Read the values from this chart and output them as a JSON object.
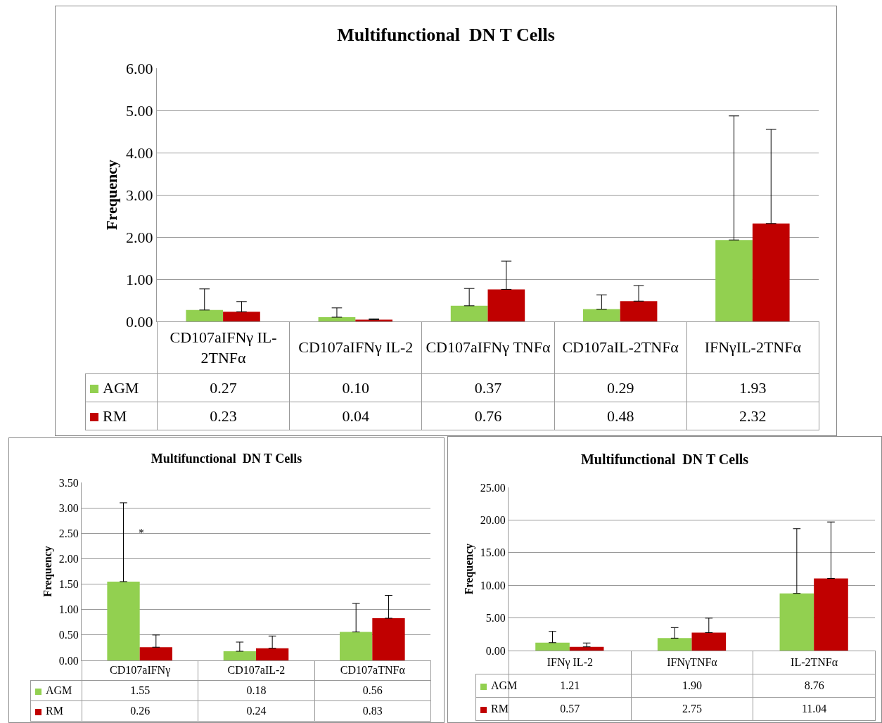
{
  "chart_data": [
    {
      "type": "bar",
      "title": "Multifunctional  DN T Cells",
      "ylabel": "Frequency",
      "categories": [
        "CD107aIFNγ IL-2TNFα",
        "CD107aIFNγ IL-2",
        "CD107aIFNγ TNFα",
        "CD107aIL-2TNFα",
        "IFNγIL-2TNFα"
      ],
      "series": [
        {
          "name": "AGM",
          "color": "#92d050",
          "values": [
            0.27,
            0.1,
            0.37,
            0.29,
            1.93
          ],
          "value_labels": [
            "0.27",
            "0.10",
            "0.37",
            "0.29",
            "1.93"
          ],
          "errors": [
            [
              0.27,
              0.77
            ],
            [
              0.1,
              0.32
            ],
            [
              0.37,
              0.78
            ],
            [
              0.29,
              0.63
            ],
            [
              1.93,
              4.87
            ]
          ]
        },
        {
          "name": "RM",
          "color": "#c00000",
          "values": [
            0.23,
            0.04,
            0.76,
            0.48,
            2.32
          ],
          "value_labels": [
            "0.23",
            "0.04",
            "0.76",
            "0.48",
            "2.32"
          ],
          "errors": [
            [
              0.23,
              0.47
            ],
            [
              0.04,
              0.06
            ],
            [
              0.76,
              1.43
            ],
            [
              0.48,
              0.85
            ],
            [
              2.32,
              4.55
            ]
          ]
        }
      ],
      "ylim": [
        0,
        6
      ],
      "yticks": [
        {
          "value": 0,
          "label": "0.00"
        },
        {
          "value": 1,
          "label": "1.00"
        },
        {
          "value": 2,
          "label": "2.00"
        },
        {
          "value": 3,
          "label": "3.00"
        },
        {
          "value": 4,
          "label": "4.00"
        },
        {
          "value": 5,
          "label": "5.00"
        },
        {
          "value": 6,
          "label": "6.00"
        }
      ],
      "grid": "y",
      "legend": "bottom left"
    },
    {
      "type": "bar",
      "title": "Multifunctional  DN T Cells",
      "ylabel": "Frequency",
      "categories": [
        "CD107aIFNγ",
        "CD107aIL-2",
        "CD107aTNFα"
      ],
      "series": [
        {
          "name": "AGM",
          "color": "#92d050",
          "values": [
            1.55,
            0.18,
            0.56
          ],
          "value_labels": [
            "1.55",
            "0.18",
            "0.56"
          ],
          "errors": [
            [
              1.55,
              3.1
            ],
            [
              0.18,
              0.36
            ],
            [
              0.56,
              1.12
            ]
          ]
        },
        {
          "name": "RM",
          "color": "#c00000",
          "values": [
            0.26,
            0.24,
            0.83
          ],
          "value_labels": [
            "0.26",
            "0.24",
            "0.83"
          ],
          "errors": [
            [
              0.26,
              0.5
            ],
            [
              0.24,
              0.48
            ],
            [
              0.83,
              1.28
            ]
          ]
        }
      ],
      "ylim": [
        0,
        3.5
      ],
      "yticks": [
        {
          "value": 0,
          "label": "0.00"
        },
        {
          "value": 0.5,
          "label": "0.50"
        },
        {
          "value": 1,
          "label": "1.00"
        },
        {
          "value": 1.5,
          "label": "1.50"
        },
        {
          "value": 2,
          "label": "2.00"
        },
        {
          "value": 2.5,
          "label": "2.50"
        },
        {
          "value": 3,
          "label": "3.00"
        },
        {
          "value": 3.5,
          "label": "3.50"
        }
      ],
      "annotations": [
        "*"
      ],
      "grid": "y",
      "legend": "bottom left"
    },
    {
      "type": "bar",
      "title": "Multifunctional  DN T Cells",
      "ylabel": "Frequency",
      "categories": [
        "IFNγ IL-2",
        "IFNγTNFα",
        "IL-2TNFα"
      ],
      "series": [
        {
          "name": "AGM",
          "color": "#92d050",
          "values": [
            1.21,
            1.9,
            8.76
          ],
          "value_labels": [
            "1.21",
            "1.90",
            "8.76"
          ],
          "errors": [
            [
              1.21,
              2.94
            ],
            [
              1.9,
              3.52
            ],
            [
              8.76,
              18.67
            ]
          ]
        },
        {
          "name": "RM",
          "color": "#c00000",
          "values": [
            0.57,
            2.75,
            11.04
          ],
          "value_labels": [
            "0.57",
            "2.75",
            "11.04"
          ],
          "errors": [
            [
              0.57,
              1.16
            ],
            [
              2.75,
              4.97
            ],
            [
              11.04,
              19.7
            ]
          ]
        }
      ],
      "ylim": [
        0,
        25
      ],
      "yticks": [
        {
          "value": 0,
          "label": "0.00"
        },
        {
          "value": 5,
          "label": "5.00"
        },
        {
          "value": 10,
          "label": "10.00"
        },
        {
          "value": 15,
          "label": "15.00"
        },
        {
          "value": 20,
          "label": "20.00"
        },
        {
          "value": 25,
          "label": "25.00"
        }
      ],
      "grid": "y",
      "legend": "bottom left"
    }
  ]
}
